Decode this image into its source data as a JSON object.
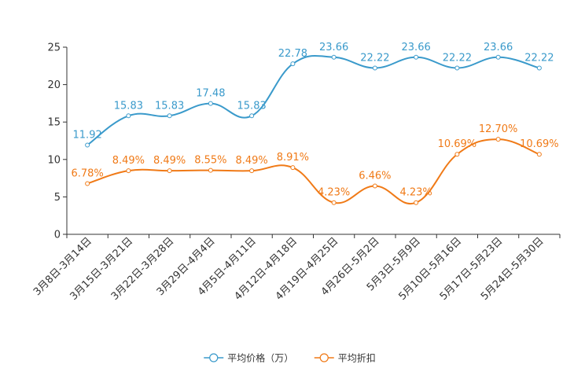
{
  "chart_data": {
    "type": "line",
    "title": "",
    "xlabel": "",
    "ylabel": "",
    "ylim": [
      0,
      25
    ],
    "yticks": [
      0,
      5,
      10,
      15,
      20,
      25
    ],
    "grid": false,
    "legend_position": "bottom-center",
    "categories": [
      "3月8日-3月14日",
      "3月15日-3月21日",
      "3月22日-3月28日",
      "3月29日-4月4日",
      "4月5日-4月11日",
      "4月12日-4月18日",
      "4月19日-4月25日",
      "4月26日-5月2日",
      "5月3日-5月9日",
      "5月10日-5月16日",
      "5月17日-5月23日",
      "5月24日-5月30日"
    ],
    "series": [
      {
        "name": "平均价格（万）",
        "color": "#3a9acb",
        "values": [
          11.92,
          15.83,
          15.83,
          17.48,
          15.83,
          22.78,
          23.66,
          22.22,
          23.66,
          22.22,
          23.66,
          22.22
        ],
        "labels": [
          "11.92",
          "15.83",
          "15.83",
          "17.48",
          "15.83",
          "22.78",
          "23.66",
          "22.22",
          "23.66",
          "22.22",
          "23.66",
          "22.22"
        ]
      },
      {
        "name": "平均折扣",
        "color": "#f07a17",
        "values": [
          6.78,
          8.49,
          8.49,
          8.55,
          8.49,
          8.91,
          4.23,
          6.46,
          4.23,
          10.69,
          12.7,
          10.69
        ],
        "labels": [
          "6.78%",
          "8.49%",
          "8.49%",
          "8.55%",
          "8.49%",
          "8.91%",
          "4.23%",
          "6.46%",
          "4.23%",
          "10.69%",
          "12.70%",
          "10.69%"
        ]
      }
    ]
  }
}
